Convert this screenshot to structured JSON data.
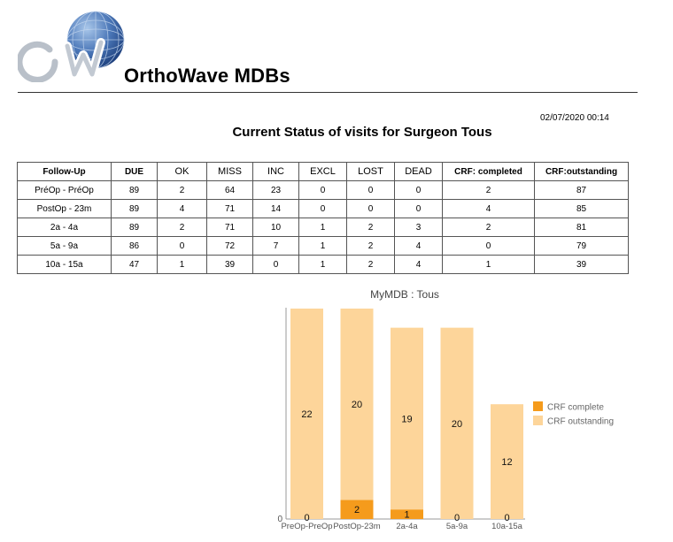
{
  "header": {
    "brand": "OrthoWave MDBs",
    "datetime": "02/07/2020 00:14",
    "report_title": "Current Status of visits for Surgeon Tous"
  },
  "table": {
    "columns": [
      "Follow-Up",
      "DUE",
      "OK",
      "MISS",
      "INC",
      "EXCL",
      "LOST",
      "DEAD",
      "CRF: completed",
      "CRF:outstanding"
    ],
    "rows": [
      [
        "PréOp - PréOp",
        "89",
        "2",
        "64",
        "23",
        "0",
        "0",
        "0",
        "2",
        "87"
      ],
      [
        "PostOp - 23m",
        "89",
        "4",
        "71",
        "14",
        "0",
        "0",
        "0",
        "4",
        "85"
      ],
      [
        "2a - 4a",
        "89",
        "2",
        "71",
        "10",
        "1",
        "2",
        "3",
        "2",
        "81"
      ],
      [
        "5a - 9a",
        "86",
        "0",
        "72",
        "7",
        "1",
        "2",
        "4",
        "0",
        "79"
      ],
      [
        "10a - 15a",
        "47",
        "1",
        "39",
        "0",
        "1",
        "2",
        "4",
        "1",
        "39"
      ]
    ]
  },
  "chart_data": {
    "type": "bar",
    "stacked": true,
    "title": "MyMDB : Tous",
    "categories": [
      "PreOp-PreOp",
      "PostOp-23m",
      "2a-4a",
      "5a-9a",
      "10a-15a"
    ],
    "series": [
      {
        "name": "CRF complete",
        "values": [
          0,
          2,
          1,
          0,
          0
        ],
        "color": "#f59b1c"
      },
      {
        "name": "CRF outstanding",
        "values": [
          22,
          20,
          19,
          20,
          12
        ],
        "color": "#fdd59a"
      }
    ],
    "y_axis_label": "0",
    "ylim": [
      0,
      22
    ],
    "legend": "right"
  },
  "colors": {
    "complete": "#f59b1c",
    "outstanding": "#fdd59a"
  }
}
